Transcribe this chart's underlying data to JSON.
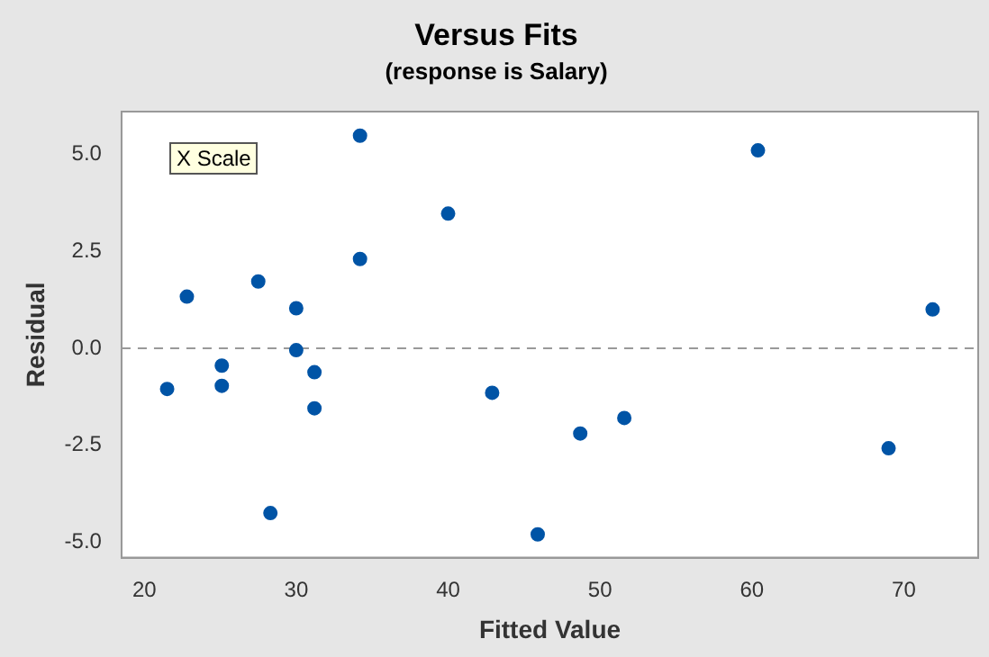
{
  "chart_data": {
    "type": "scatter",
    "title": "Versus Fits",
    "subtitle": "(response is Salary)",
    "xlabel": "Fitted Value",
    "ylabel": "Residual",
    "x": [
      21.5,
      22.8,
      25.1,
      25.1,
      27.5,
      28.3,
      30,
      30,
      31.2,
      31.2,
      34.2,
      34.2,
      40,
      42.9,
      45.9,
      48.7,
      51.6,
      60.4,
      69,
      71.9
    ],
    "series": [
      {
        "color": "#0054a6",
        "values": [
          -1.05,
          1.33,
          -0.45,
          -0.97,
          1.72,
          -4.25,
          1.03,
          -0.05,
          -0.62,
          -1.55,
          5.48,
          2.3,
          3.47,
          -1.15,
          -4.8,
          -2.2,
          -1.8,
          5.1,
          -2.58,
          1.0
        ]
      }
    ],
    "xlim": [
      18.5,
      74.9
    ],
    "xticks": [
      20,
      30,
      40,
      50,
      60,
      70
    ],
    "ylim": [
      -5.4,
      6.1
    ],
    "yticks": [
      {
        "value": -5,
        "label": "-5.0"
      },
      {
        "value": -2.5,
        "label": "-2.5"
      },
      {
        "value": 0,
        "label": "0.0"
      },
      {
        "value": 2.5,
        "label": "2.5"
      },
      {
        "value": 5,
        "label": "5.0"
      }
    ],
    "ref_lines": [
      {
        "axis": "y",
        "value": 0,
        "color": "#999999",
        "line_style": "dashed"
      }
    ],
    "annotations": [
      "X Scale"
    ],
    "grid": false,
    "legend": false,
    "marker": "circle"
  }
}
